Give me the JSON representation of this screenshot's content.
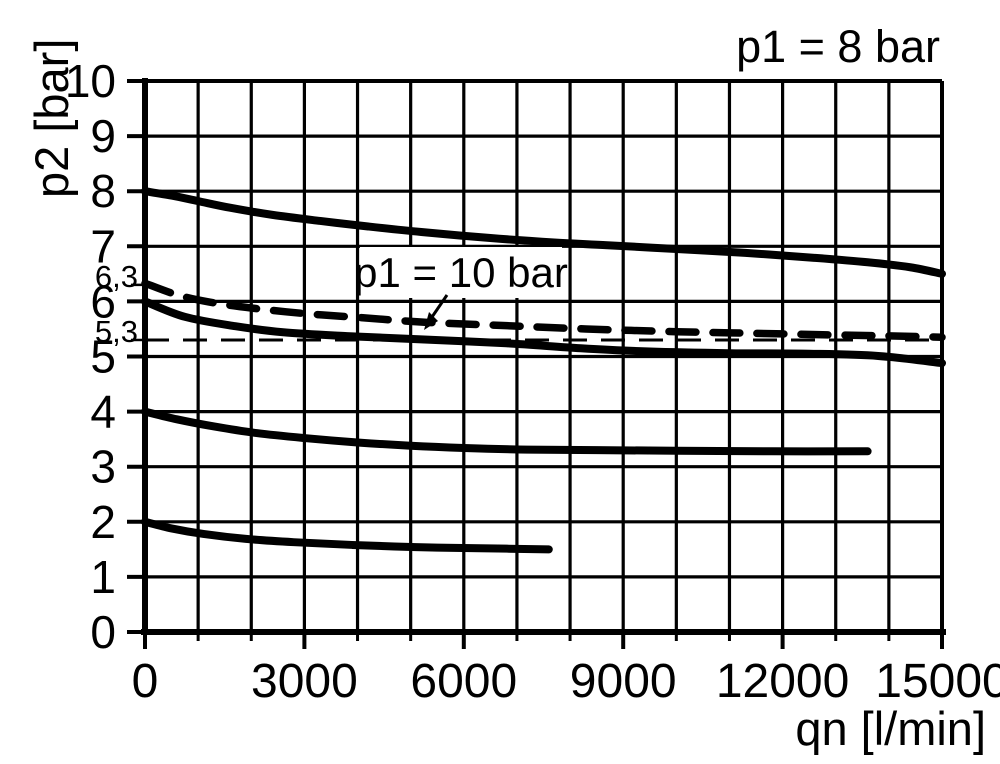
{
  "colors": {
    "ink": "#000000",
    "background": "#ffffff"
  },
  "chart_data": {
    "type": "line",
    "title_annotation": "p1 = 8 bar",
    "xlabel": "qn [l/min]",
    "ylabel": "p2 [bar]",
    "xlim": [
      0,
      15000
    ],
    "ylim": [
      0,
      10
    ],
    "grid": true,
    "x_major_ticks": [
      0,
      3000,
      6000,
      9000,
      12000,
      15000
    ],
    "x_tick_labels": [
      "0",
      "3000",
      "6000",
      "9000",
      "12000",
      "15000"
    ],
    "x_minor_step": 1000,
    "y_tick_values": [
      0,
      1,
      2,
      3,
      4,
      5,
      6,
      7,
      8,
      9,
      10
    ],
    "y_tick_labels": [
      "0",
      "1",
      "2",
      "3",
      "4",
      "5",
      "6",
      "7",
      "8",
      "9",
      "10"
    ],
    "y_special_ticks": [
      {
        "value": 6.3,
        "label": "6,3"
      },
      {
        "value": 5.3,
        "label": "5,3"
      }
    ],
    "reference_line": {
      "p2": 5.3,
      "style": "thin-dashed"
    },
    "annotation": {
      "label": "p1 = 10 bar",
      "points_to": {
        "qn": 5300,
        "p2": 5.62
      }
    },
    "series": [
      {
        "id": "outlet-setting-8bar",
        "style": "solid",
        "points": [
          [
            0,
            8.0
          ],
          [
            500,
            7.92
          ],
          [
            1000,
            7.82
          ],
          [
            1600,
            7.7
          ],
          [
            2400,
            7.57
          ],
          [
            3300,
            7.46
          ],
          [
            4200,
            7.36
          ],
          [
            5200,
            7.26
          ],
          [
            6500,
            7.15
          ],
          [
            7700,
            7.07
          ],
          [
            8700,
            7.02
          ],
          [
            10000,
            6.95
          ],
          [
            11300,
            6.88
          ],
          [
            12600,
            6.79
          ],
          [
            13600,
            6.71
          ],
          [
            14400,
            6.62
          ],
          [
            15000,
            6.5
          ]
        ]
      },
      {
        "id": "p1-10bar-dashed",
        "style": "dashed",
        "points": [
          [
            0,
            6.33
          ],
          [
            600,
            6.12
          ],
          [
            1200,
            5.99
          ],
          [
            2000,
            5.88
          ],
          [
            3000,
            5.78
          ],
          [
            4000,
            5.71
          ],
          [
            5300,
            5.62
          ],
          [
            6800,
            5.56
          ],
          [
            8300,
            5.5
          ],
          [
            10000,
            5.45
          ],
          [
            11500,
            5.42
          ],
          [
            13000,
            5.39
          ],
          [
            14200,
            5.37
          ],
          [
            15000,
            5.35
          ]
        ]
      },
      {
        "id": "outlet-setting-6bar",
        "style": "solid",
        "points": [
          [
            0,
            6.0
          ],
          [
            750,
            5.72
          ],
          [
            1700,
            5.55
          ],
          [
            2600,
            5.44
          ],
          [
            3800,
            5.37
          ],
          [
            5200,
            5.31
          ],
          [
            6800,
            5.24
          ],
          [
            8200,
            5.15
          ],
          [
            9500,
            5.09
          ],
          [
            11000,
            5.06
          ],
          [
            12500,
            5.05
          ],
          [
            13800,
            5.01
          ],
          [
            15000,
            4.88
          ]
        ]
      },
      {
        "id": "outlet-setting-4bar",
        "style": "solid",
        "points": [
          [
            0,
            4.0
          ],
          [
            600,
            3.86
          ],
          [
            1300,
            3.73
          ],
          [
            2100,
            3.61
          ],
          [
            3000,
            3.52
          ],
          [
            4000,
            3.44
          ],
          [
            5000,
            3.38
          ],
          [
            6000,
            3.34
          ],
          [
            7200,
            3.31
          ],
          [
            8500,
            3.3
          ],
          [
            10000,
            3.29
          ],
          [
            11800,
            3.28
          ],
          [
            13600,
            3.28
          ]
        ]
      },
      {
        "id": "outlet-setting-2bar",
        "style": "solid",
        "points": [
          [
            0,
            2.0
          ],
          [
            500,
            1.88
          ],
          [
            1100,
            1.78
          ],
          [
            1900,
            1.69
          ],
          [
            2800,
            1.63
          ],
          [
            3900,
            1.58
          ],
          [
            5100,
            1.54
          ],
          [
            6300,
            1.52
          ],
          [
            7600,
            1.5
          ]
        ]
      }
    ]
  }
}
